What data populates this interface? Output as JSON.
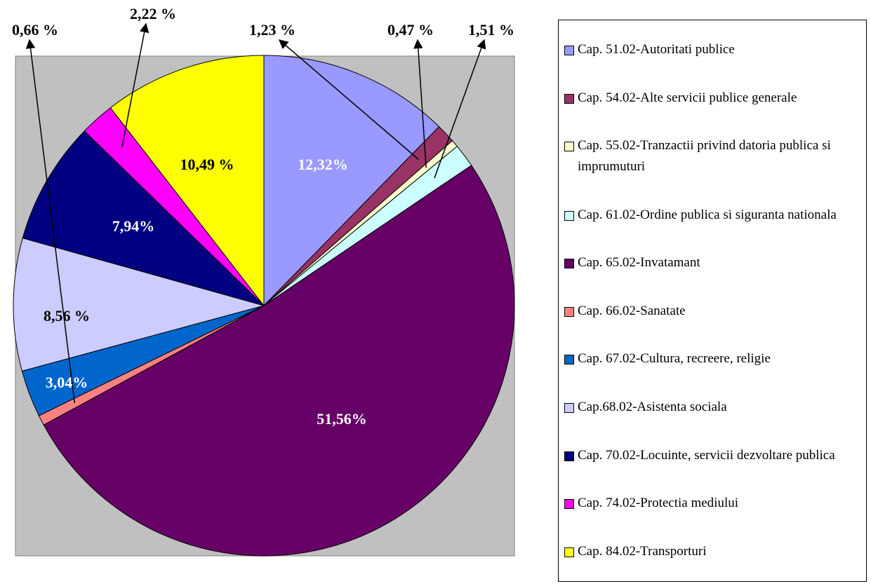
{
  "chart_data": {
    "type": "pie",
    "categories": [
      "Cap. 51.02-Autoritati publice",
      "Cap. 54.02-Alte servicii publice generale",
      "Cap. 55.02-Tranzactii privind datoria publica si imprumuturi",
      "Cap. 61.02-Ordine publica si siguranta nationala",
      "Cap. 65.02-Invatamant",
      "Cap. 66.02-Sanatate",
      "Cap. 67.02-Cultura, recreere, religie",
      "Cap.68.02-Asistenta sociala",
      "Cap. 70.02-Locuinte, servicii dezvoltare publica",
      "Cap. 74.02-Protectia mediului",
      "Cap. 84.02-Transporturi"
    ],
    "values": [
      12.32,
      1.23,
      0.47,
      1.51,
      51.56,
      0.66,
      3.04,
      8.56,
      7.94,
      2.22,
      10.49
    ],
    "value_labels": [
      "12,32%",
      "1,23 %",
      "0,47 %",
      "1,51 %",
      "51,56%",
      "0,66 %",
      "3,04%",
      "8,56 %",
      "7,94%",
      "2,22 %",
      "10,49 %"
    ],
    "colors": [
      "#9999ff",
      "#993366",
      "#ffffcc",
      "#ccffff",
      "#660066",
      "#ff8080",
      "#0066cc",
      "#ccccff",
      "#000080",
      "#ff00ff",
      "#ffff00"
    ],
    "label_colors": [
      "#ffffff",
      "#000000",
      "#000000",
      "#000000",
      "#ffffff",
      "#000000",
      "#ffffff",
      "#000000",
      "#ffffff",
      "#000000",
      "#000000"
    ],
    "plot_background": "#c0c0c0"
  }
}
